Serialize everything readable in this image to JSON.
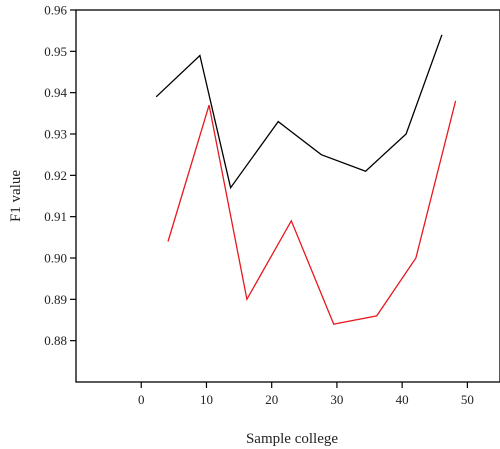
{
  "chart_data": {
    "type": "line",
    "title": "",
    "xlabel": "Sample college",
    "ylabel": "F1 value",
    "xlim": [
      -10,
      55
    ],
    "ylim": [
      0.87,
      0.96
    ],
    "xticks": [
      0,
      10,
      20,
      30,
      40,
      50
    ],
    "yticks": [
      0.88,
      0.89,
      0.9,
      0.91,
      0.92,
      0.93,
      0.94,
      0.95,
      0.96
    ],
    "xtick_labels": [
      "0",
      "10",
      "20",
      "30",
      "40",
      "50"
    ],
    "ytick_labels": [
      "0.88",
      "0.89",
      "0.90",
      "0.91",
      "0.92",
      "0.93",
      "0.94",
      "0.95",
      "0.96"
    ],
    "grid": false,
    "legend": "none",
    "series": [
      {
        "color": "#000000",
        "x": [
          2.3,
          9.0,
          13.7,
          21.0,
          27.6,
          34.4,
          40.6,
          46.1
        ],
        "y": [
          0.939,
          0.949,
          0.917,
          0.933,
          0.925,
          0.921,
          0.93,
          0.954
        ]
      },
      {
        "color": "#e8191f",
        "x": [
          4.1,
          10.4,
          16.2,
          23.0,
          29.5,
          36.1,
          42.1,
          48.2
        ],
        "y": [
          0.904,
          0.937,
          0.89,
          0.909,
          0.884,
          0.886,
          0.9,
          0.938
        ]
      }
    ]
  }
}
